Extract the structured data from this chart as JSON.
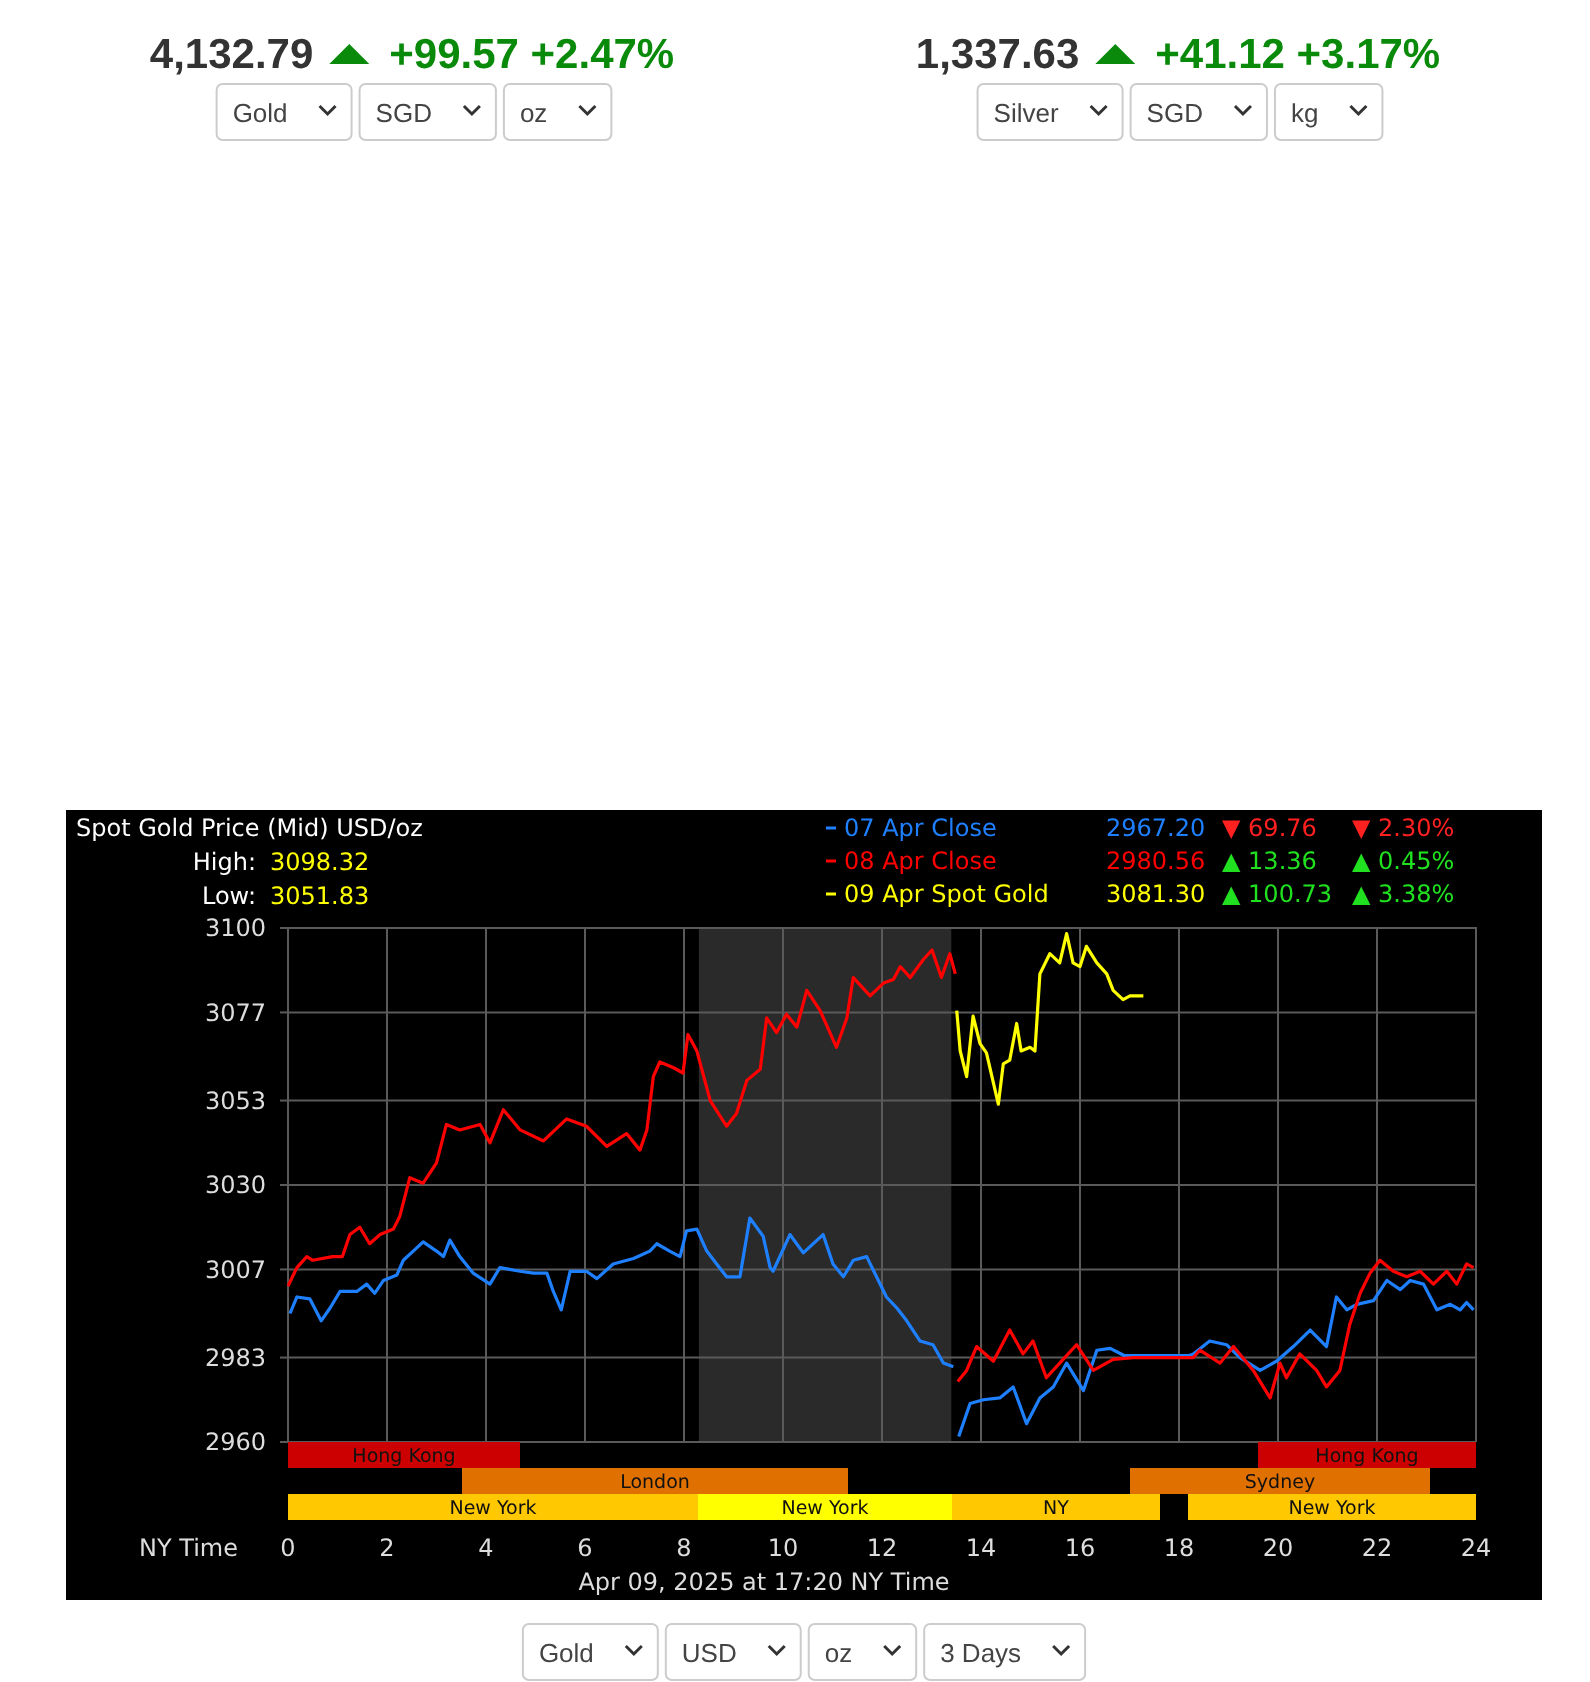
{
  "chart_data": [
    {
      "type": "other",
      "title": "4,132.79",
      "subtitle": "+99.57 +2.47%",
      "annotations": [
        "Gold",
        "SGD",
        "oz"
      ]
    },
    {
      "type": "other",
      "title": "1,337.63",
      "subtitle": "+41.12 +3.17%",
      "annotations": [
        "Silver",
        "SGD",
        "kg"
      ]
    },
    {
      "type": "line",
      "title": "Spot Gold Price (Mid) USD/oz",
      "xlabel": "NY Time",
      "xlim": [
        0,
        24
      ],
      "xticks": [
        0,
        2,
        4,
        6,
        8,
        10,
        12,
        14,
        16,
        18,
        20,
        22,
        24
      ],
      "ylim": [
        2960,
        3100
      ],
      "yticks": [
        2960,
        2983,
        3007,
        3030,
        3053,
        3077,
        3100
      ],
      "grid": true,
      "legend": "top right",
      "annotations": [
        "High:",
        "3098.32",
        "Low:",
        "3051.83",
        "2967.20",
        "▼ 69.76",
        "▼ 2.30%",
        "2980.56",
        "▲ 13.36",
        "▲ 0.45%",
        "3081.30",
        "▲ 100.73",
        "▲ 3.38%",
        "Apr 09, 2025 at 17:20 NY Time"
      ],
      "bands": [
        {
          "axis": "x",
          "from": 8.3,
          "to": 13.4,
          "color": "#2a2a2a"
        }
      ],
      "series": [
        {
          "name": "07 Apr Close",
          "color": "#1e80ff",
          "x": [
            0.04,
            0.18,
            0.44,
            0.67,
            0.85,
            1.05,
            1.39,
            1.59,
            1.75,
            1.93,
            2.2,
            2.33,
            2.53,
            2.73,
            3.0,
            3.14,
            3.27,
            3.47,
            3.74,
            4.08,
            4.28,
            4.69,
            4.96,
            5.23,
            5.36,
            5.52,
            5.7,
            6.03,
            6.24,
            6.57,
            6.98,
            7.31,
            7.45,
            7.71,
            7.92,
            8.05,
            8.26,
            8.46,
            8.66,
            8.86,
            9.13,
            9.33,
            9.6,
            9.74,
            9.8,
            10.14,
            10.41,
            10.81,
            11.01,
            11.22,
            11.42,
            11.69,
            11.89,
            12.09,
            12.3,
            12.5,
            12.77,
            13.03,
            13.24,
            13.44,
            13.5,
            13.55,
            13.78,
            14.05,
            14.38,
            14.65,
            14.92,
            15.19,
            15.46,
            15.73,
            16.07,
            16.34,
            16.61,
            16.9,
            17.5,
            18.2,
            18.29,
            18.62,
            18.96,
            19.23,
            19.64,
            19.97,
            20.31,
            20.65,
            20.98,
            21.18,
            21.39,
            21.59,
            21.93,
            22.2,
            22.47,
            22.67,
            22.94,
            23.21,
            23.48,
            23.68,
            23.81,
            23.95
          ],
          "values": [
            2995,
            2999.5,
            2999,
            2993,
            2996.5,
            3001,
            3001,
            3003,
            3000.5,
            3004,
            3005.5,
            3009.5,
            3012,
            3014.5,
            3012,
            3010.5,
            3015,
            3010.5,
            3006,
            3003,
            3007.5,
            3006.5,
            3006,
            3006,
            3001,
            2996,
            3006.5,
            3006.5,
            3004.5,
            3008.5,
            3010,
            3012,
            3014,
            3012,
            3010.5,
            3017.5,
            3018,
            3012,
            3008.5,
            3005,
            3005,
            3021,
            3016,
            3007.5,
            3006.5,
            3016.5,
            3011.5,
            3016.5,
            3008.5,
            3005,
            3009.5,
            3010.5,
            3005,
            2999.5,
            2996.5,
            2993,
            2987.5,
            2986.5,
            2981.5,
            2980.5,
            null,
            2961.5,
            2970.5,
            2971.5,
            2972,
            2975,
            2965,
            2972,
            2975,
            2981.5,
            2974,
            2985,
            2985.5,
            2983.5,
            2983.5,
            2983.5,
            2984,
            2987.5,
            2986.5,
            2983,
            2979.5,
            2982,
            2986,
            2990.5,
            2986,
            2999.5,
            2996,
            2997.5,
            2998.5,
            3004,
            3001.5,
            3004,
            3003,
            2996,
            2997.5,
            2996,
            2998,
            2996
          ]
        },
        {
          "name": "08 Apr Close",
          "color": "#ff0000",
          "x": [
            0,
            0.18,
            0.38,
            0.5,
            0.9,
            1.1,
            1.25,
            1.45,
            1.65,
            1.86,
            2.13,
            2.26,
            2.46,
            2.73,
            3.0,
            3.2,
            3.47,
            3.88,
            4.08,
            4.35,
            4.69,
            5.16,
            5.63,
            6.03,
            6.44,
            6.84,
            7.11,
            7.25,
            7.38,
            7.51,
            7.78,
            7.98,
            8.08,
            8.26,
            8.53,
            8.86,
            9.06,
            9.27,
            9.54,
            9.67,
            9.87,
            10.07,
            10.28,
            10.48,
            10.75,
            11.08,
            11.29,
            11.42,
            11.76,
            12.03,
            12.23,
            12.37,
            12.57,
            12.84,
            13.01,
            13.2,
            13.37,
            13.48,
            13.5,
            13.53,
            13.71,
            13.91,
            14.25,
            14.58,
            14.85,
            15.05,
            15.32,
            15.59,
            15.93,
            16.27,
            16.67,
            17.08,
            17.7,
            18.29,
            18.42,
            18.83,
            19.1,
            19.5,
            19.84,
            20.04,
            20.17,
            20.44,
            20.78,
            20.98,
            21.25,
            21.45,
            21.66,
            21.86,
            22.06,
            22.33,
            22.6,
            22.87,
            23.14,
            23.41,
            23.61,
            23.81,
            23.95
          ],
          "values": [
            3002.5,
            3007.5,
            3010.5,
            3009.5,
            3010.5,
            3010.5,
            3016.5,
            3018.5,
            3014,
            3016.5,
            3018,
            3021.5,
            3032,
            3030.5,
            3036,
            3046.5,
            3045,
            3046.5,
            3041.5,
            3050.5,
            3045,
            3042,
            3048,
            3046,
            3040.5,
            3044,
            3039.5,
            3045,
            3059.5,
            3063.5,
            3062,
            3060.5,
            3071,
            3066.5,
            3053,
            3046,
            3049.5,
            3058.5,
            3061.5,
            3075.5,
            3071.5,
            3076.5,
            3073,
            3083,
            3077.5,
            3067.5,
            3075.5,
            3086.5,
            3081.5,
            3085,
            3086,
            3089.5,
            3086.5,
            3091.5,
            3094,
            3086.5,
            3093,
            3087.5,
            null,
            2976.5,
            2979.5,
            2986,
            2982,
            2990.5,
            2984,
            2987.5,
            2977.5,
            2981.5,
            2986.5,
            2979.5,
            2982.5,
            2983,
            2983,
            2983,
            2985,
            2981.5,
            2986,
            2979.5,
            2972,
            2981.5,
            2977.5,
            2984,
            2979.5,
            2975,
            2979.5,
            2992,
            3000.5,
            3006,
            3009.5,
            3006.5,
            3005,
            3006.5,
            3003,
            3006.5,
            3003,
            3008.5,
            3007.5
          ]
        },
        {
          "name": "09 Apr Spot Gold",
          "color": "#ffff00",
          "x": [
            13.51,
            13.58,
            13.71,
            13.84,
            13.98,
            14.11,
            14.35,
            14.45,
            14.58,
            14.72,
            14.81,
            14.99,
            15.09,
            15.19,
            15.39,
            15.59,
            15.73,
            15.86,
            16.0,
            16.13,
            16.34,
            16.54,
            16.67,
            16.87,
            17.01,
            17.28
          ],
          "values": [
            3077.5,
            3066.5,
            3059.5,
            3076,
            3068.5,
            3066,
            3052,
            3063,
            3064,
            3074,
            3066.5,
            3067.5,
            3066.5,
            3087.5,
            3093,
            3090.5,
            3098.5,
            3090.5,
            3089.5,
            3095,
            3090.5,
            3087.5,
            3083,
            3080.5,
            3081.5,
            3081.5
          ]
        }
      ]
    },
    {
      "type": "other",
      "annotations": [
        "Hong Kong",
        "Hong Kong",
        "London",
        "Sydney",
        "New York",
        "New York",
        "NY",
        "New York"
      ]
    },
    {
      "type": "other",
      "annotations": [
        "Gold",
        "USD",
        "oz",
        "3 Days"
      ]
    }
  ]
}
